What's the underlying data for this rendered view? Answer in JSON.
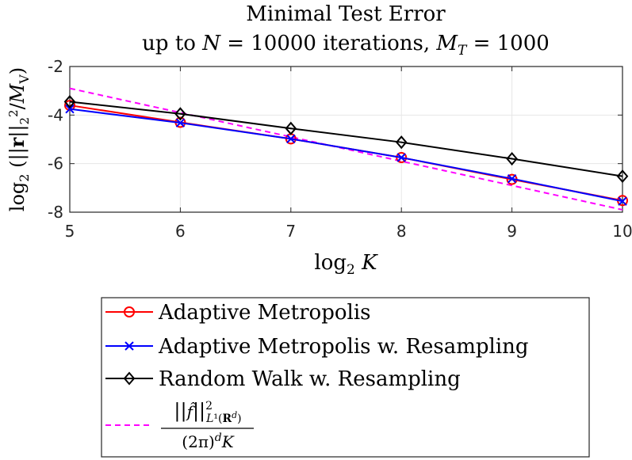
{
  "chart_data": {
    "type": "line",
    "title": "Minimal Test Error",
    "subtitle": "up to N = 10000 iterations, M_T = 1000",
    "xlabel": "log2 K",
    "ylabel": "log2 (||r||_2^2 / M_V)",
    "xlim": [
      5,
      10
    ],
    "ylim": [
      -8,
      -2
    ],
    "x_ticks": [
      "5",
      "6",
      "7",
      "8",
      "9",
      "10"
    ],
    "y_ticks": [
      "-2",
      "-4",
      "-6",
      "-8"
    ],
    "grid": true,
    "legend_position": "bottom (outside)",
    "x": [
      5,
      6,
      7,
      8,
      9,
      10
    ],
    "series": [
      {
        "name": "Adaptive Metropolis",
        "color": "#ff0000",
        "marker": "circle",
        "line": "solid",
        "values": [
          -3.6,
          -4.3,
          -4.98,
          -5.75,
          -6.65,
          -7.52
        ]
      },
      {
        "name": "Adaptive Metropolis w. Resampling",
        "color": "#0000ff",
        "marker": "x",
        "line": "solid",
        "values": [
          -3.75,
          -4.32,
          -4.98,
          -5.75,
          -6.62,
          -7.55
        ]
      },
      {
        "name": "Random Walk w. Resampling",
        "color": "#000000",
        "marker": "diamond",
        "line": "solid",
        "values": [
          -3.45,
          -3.95,
          -4.55,
          -5.12,
          -5.8,
          -6.52
        ]
      },
      {
        "name": "||f^||^2_{L^1(R^d)} / ((2π)^d K)",
        "color": "#ff00ff",
        "marker": "none",
        "line": "dashed",
        "x": [
          5,
          10
        ],
        "values": [
          -2.9,
          -7.9
        ]
      }
    ]
  }
}
